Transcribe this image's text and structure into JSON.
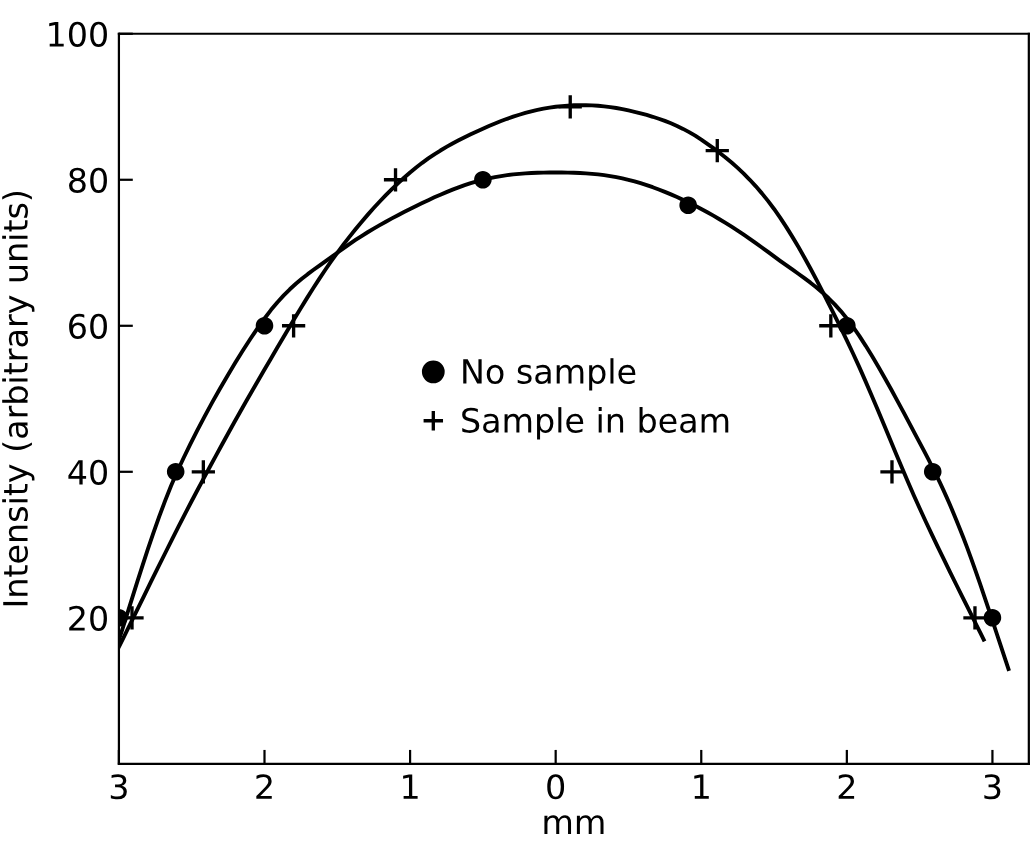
{
  "chart_data": {
    "type": "scatter",
    "xlabel": "mm",
    "ylabel": "Intensity (arbitrary units)",
    "xlim": [
      -3,
      3.25
    ],
    "ylim": [
      0,
      100
    ],
    "xticks": [
      {
        "value": -3,
        "label": "3"
      },
      {
        "value": -2,
        "label": "2"
      },
      {
        "value": -1,
        "label": "1"
      },
      0,
      1,
      2,
      3
    ],
    "yticks": [
      20,
      40,
      60,
      80,
      100
    ],
    "grid": false,
    "legend": "center",
    "series": [
      {
        "name": "No sample",
        "marker": "circle",
        "color": "#000000",
        "x": [
          -3,
          -2.61,
          -2,
          -0.5,
          0.91,
          2,
          2.59,
          3
        ],
        "values": [
          20,
          40,
          60,
          80,
          76.5,
          60,
          40,
          20
        ]
      },
      {
        "name": "Sample in beam",
        "marker": "cross",
        "color": "#000000",
        "x": [
          -2.91,
          -2.42,
          -1.8,
          -1.1,
          0.1,
          1.11,
          1.89,
          2.31,
          2.88
        ],
        "values": [
          20,
          40,
          60,
          80,
          90,
          84,
          60,
          40,
          20
        ]
      },
      {
        "type": "line",
        "color": "#000000",
        "line_style": "solid",
        "marker": "none",
        "x": [
          -3,
          -2.6,
          -2,
          -1.5,
          -1,
          -0.5,
          0,
          0.5,
          1,
          1.5,
          2,
          2.5,
          2.8,
          3.11
        ],
        "values": [
          17,
          40,
          61,
          70,
          76,
          80,
          81,
          80,
          76,
          69.5,
          61,
          44,
          31,
          13
        ]
      },
      {
        "type": "line",
        "color": "#000000",
        "line_style": "solid",
        "marker": "none",
        "x": [
          -3,
          -2.5,
          -2,
          -1.5,
          -1,
          -0.5,
          0,
          0.5,
          1,
          1.5,
          2,
          2.5,
          2.94
        ],
        "values": [
          16,
          36,
          54,
          70,
          81,
          87,
          90,
          89.5,
          85.5,
          76,
          58,
          35,
          17
        ]
      }
    ]
  }
}
